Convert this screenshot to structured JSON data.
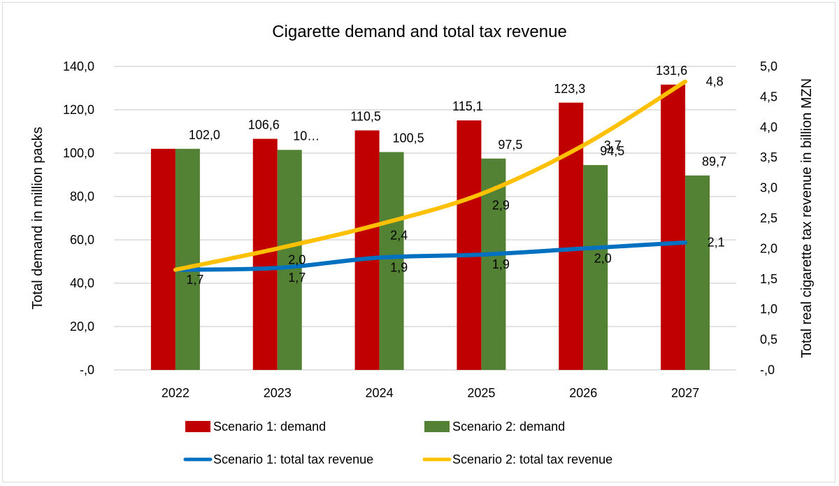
{
  "chart_data": {
    "type": "bar",
    "title": "Cigarette demand and total tax revenue",
    "categories": [
      "2022",
      "2023",
      "2024",
      "2025",
      "2026",
      "2027"
    ],
    "xlabel": "",
    "ylabel": "Total demand in million packs",
    "y2label": "Total real cigarette tax revenue in billion MZN",
    "ylim": [
      0,
      140
    ],
    "y2lim": [
      0,
      5
    ],
    "yticks": [
      "-,0",
      "20,0",
      "40,0",
      "60,0",
      "80,0",
      "100,0",
      "120,0",
      "140,0"
    ],
    "y2ticks": [
      "-,0",
      "0,5",
      "1,0",
      "1,5",
      "2,0",
      "2,5",
      "3,0",
      "3,5",
      "4,0",
      "4,5",
      "5,0"
    ],
    "grid": true,
    "legend_position": "bottom",
    "series": [
      {
        "name": "Scenario 1: demand",
        "kind": "bar",
        "axis": "left",
        "color": "#c00000",
        "values": [
          102.0,
          106.6,
          110.5,
          115.1,
          123.3,
          131.6
        ],
        "labels": [
          "",
          "106,6",
          "110,5",
          "115,1",
          "123,3",
          "131,6"
        ]
      },
      {
        "name": "Scenario 2: demand",
        "kind": "bar",
        "axis": "left",
        "color": "#548235",
        "values": [
          102.0,
          101.5,
          100.5,
          97.5,
          94.5,
          89.7
        ],
        "labels": [
          "102,0",
          "10…",
          "100,5",
          "97,5",
          "94,5",
          "89,7"
        ]
      },
      {
        "name": "Scenario 1: total tax revenue",
        "kind": "line",
        "axis": "right",
        "color": "#0070c0",
        "values": [
          1.65,
          1.68,
          1.85,
          1.9,
          2.0,
          2.1
        ],
        "labels": [
          "1,7",
          "1,7",
          "1,9",
          "1,9",
          "2,0",
          "2,1"
        ]
      },
      {
        "name": "Scenario 2: total tax revenue",
        "kind": "line",
        "axis": "right",
        "color": "#ffc000",
        "values": [
          1.65,
          2.0,
          2.4,
          2.9,
          3.7,
          4.75
        ],
        "labels": [
          "",
          "2,0",
          "2,4",
          "2,9",
          "3,7",
          "4,8"
        ]
      }
    ]
  }
}
